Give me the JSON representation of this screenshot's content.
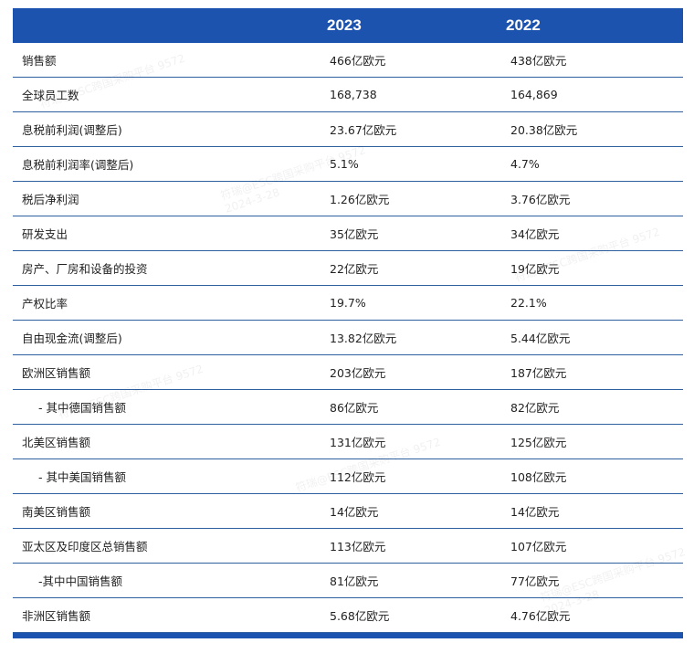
{
  "header": {
    "year_a": "2023",
    "year_b": "2022"
  },
  "rows": [
    {
      "label": "销售额",
      "a": "466亿欧元",
      "b": "438亿欧元"
    },
    {
      "label": "全球员工数",
      "a": "168,738",
      "b": "164,869"
    },
    {
      "label": "息税前利润(调整后)",
      "a": "23.67亿欧元",
      "b": "20.38亿欧元"
    },
    {
      "label": "息税前利润率(调整后)",
      "a": "5.1%",
      "b": "4.7%"
    },
    {
      "label": "税后净利润",
      "a": "1.26亿欧元",
      "b": "3.76亿欧元"
    },
    {
      "label": "研发支出",
      "a": "35亿欧元",
      "b": "34亿欧元"
    },
    {
      "label": "房产、厂房和设备的投资",
      "a": "22亿欧元",
      "b": "19亿欧元"
    },
    {
      "label": "产权比率",
      "a": "19.7%",
      "b": "22.1%"
    },
    {
      "label": "自由现金流(调整后)",
      "a": "13.82亿欧元",
      "b": "5.44亿欧元"
    },
    {
      "label": "欧洲区销售额",
      "a": "203亿欧元",
      "b": "187亿欧元"
    },
    {
      "label": "- 其中德国销售额",
      "a": "86亿欧元",
      "b": "82亿欧元"
    },
    {
      "label": "北美区销售额",
      "a": "131亿欧元",
      "b": "125亿欧元"
    },
    {
      "label": "- 其中美国销售额",
      "a": "112亿欧元",
      "b": "108亿欧元"
    },
    {
      "label": "南美区销售额",
      "a": "14亿欧元",
      "b": "14亿欧元"
    },
    {
      "label": "亚太区及印度区总销售额",
      "a": "113亿欧元",
      "b": "107亿欧元"
    },
    {
      "label": "-其中中国销售额",
      "a": "81亿欧元",
      "b": "77亿欧元"
    },
    {
      "label": "非洲区销售额",
      "a": "5.68亿欧元",
      "b": "4.76亿欧元"
    }
  ],
  "watermark": {
    "text": "符瑞@ESC跨国采购平台 9572",
    "date": "2024-3-28"
  }
}
